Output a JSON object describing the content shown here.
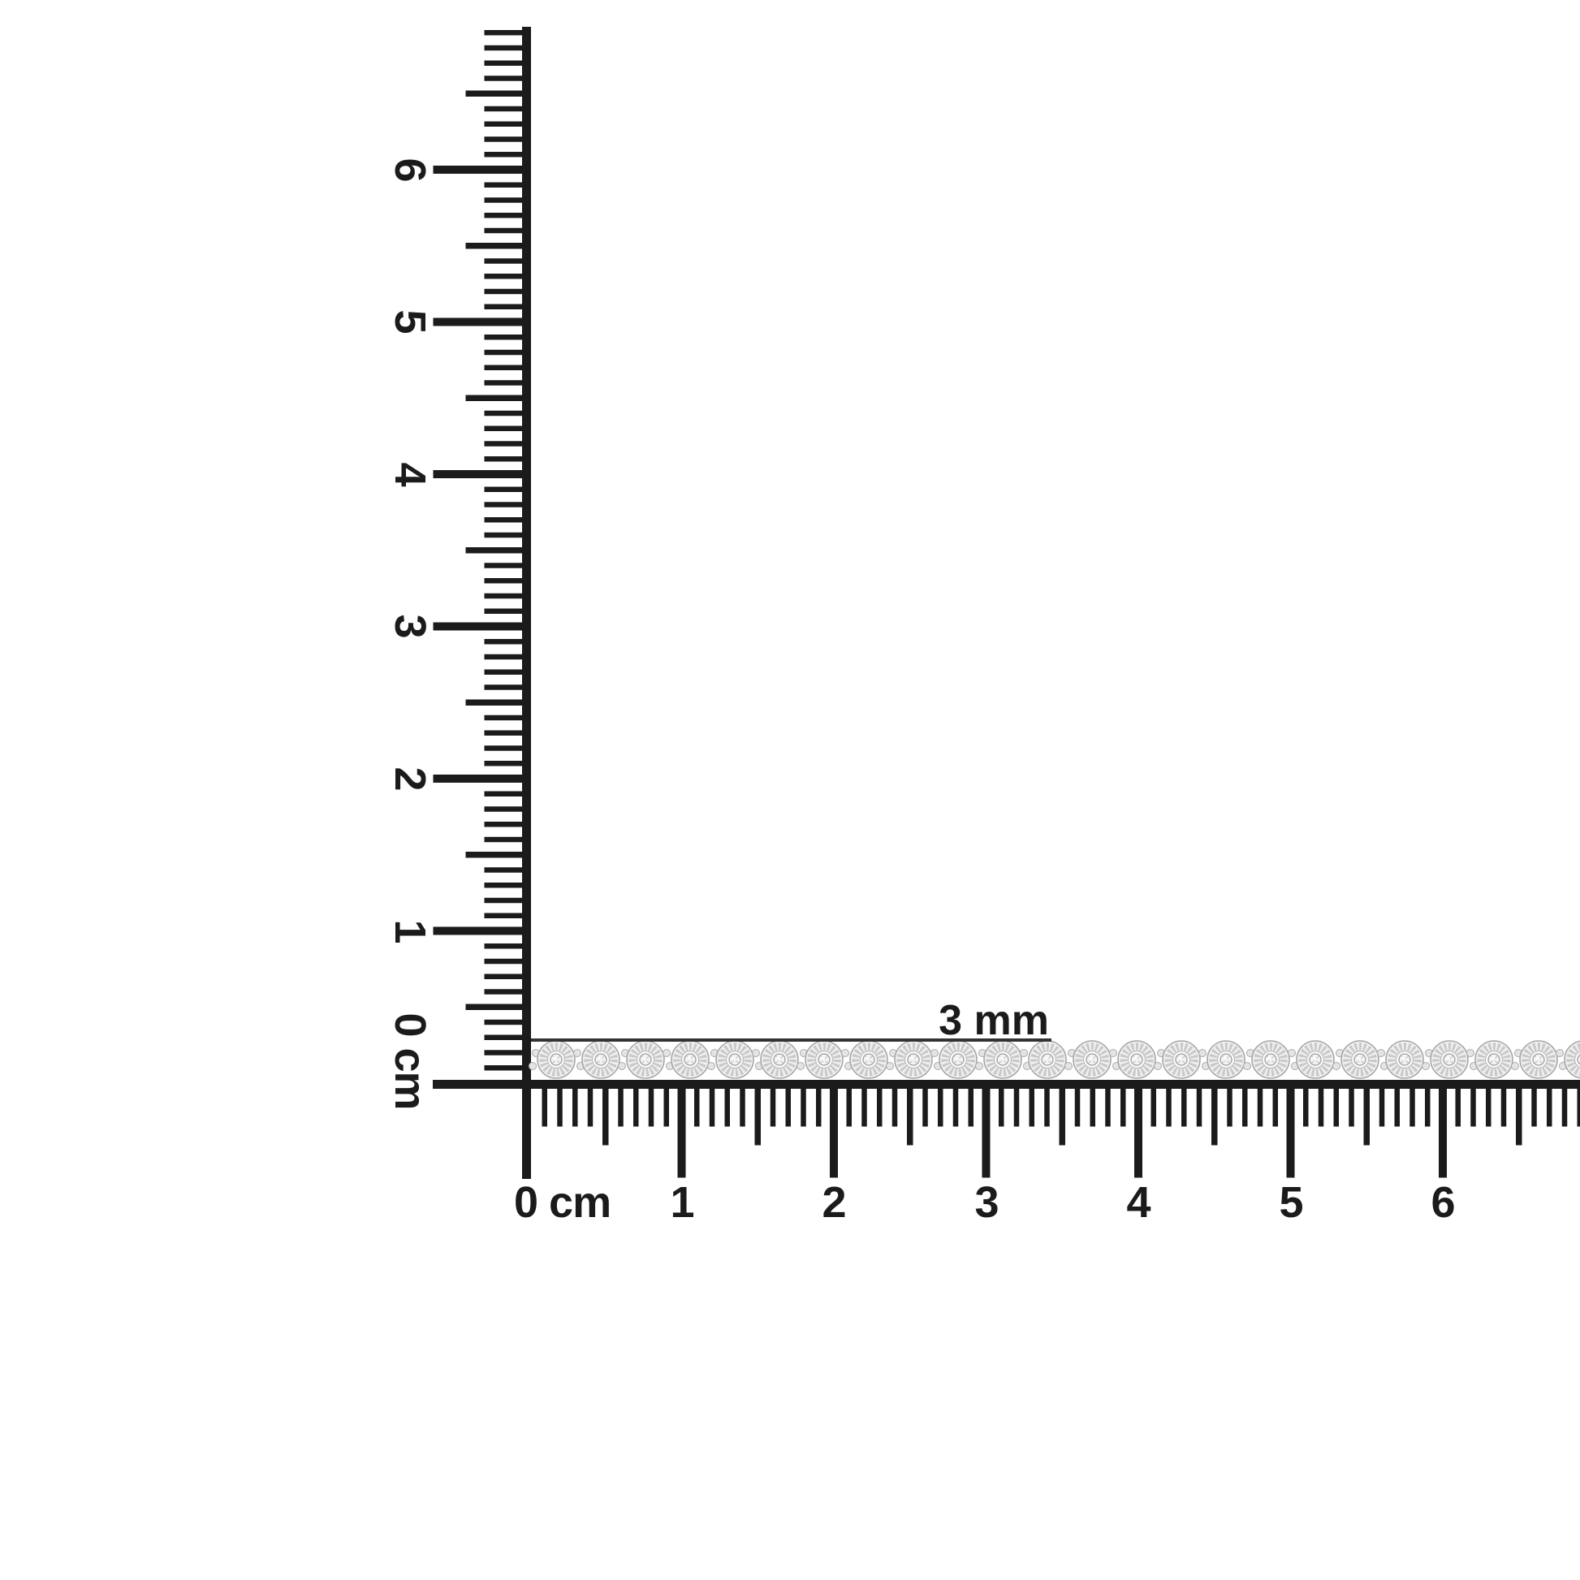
{
  "page": {
    "background_color": "#ffffff",
    "ink_color": "#1b1b1b",
    "description": "diamond tennis bracelet photographed on a centimeter ruler corner"
  },
  "rulers": {
    "unit": "cm",
    "vertical": {
      "zero_label": "0 cm",
      "labels": [
        "6",
        "5",
        "4",
        "3",
        "2",
        "1"
      ],
      "max_mm": 69
    },
    "horizontal": {
      "zero_label": "0 cm",
      "labels": [
        "1",
        "2",
        "3",
        "4",
        "5",
        "6"
      ],
      "max_mm": 69
    }
  },
  "annotation": {
    "label": "3 mm",
    "value": "3",
    "unit": "mm",
    "line_color": "#333333"
  },
  "bracelet": {
    "name": "diamond tennis bracelet",
    "link_count": 24,
    "metal_fill": "#f1f1f1",
    "metal_outline": "#a8a8a8",
    "texture_color": "#c9c9c9",
    "inner_fill": "#fcfcfc",
    "inner_outline": "#bdbdbd",
    "diamond_fill": "#f3f3f3",
    "diamond_outline": "#9e9e9e",
    "facet_color": "#c6c6c6",
    "connector_fill": "#e4e4e4",
    "connector_outline": "#aaaaaa"
  }
}
